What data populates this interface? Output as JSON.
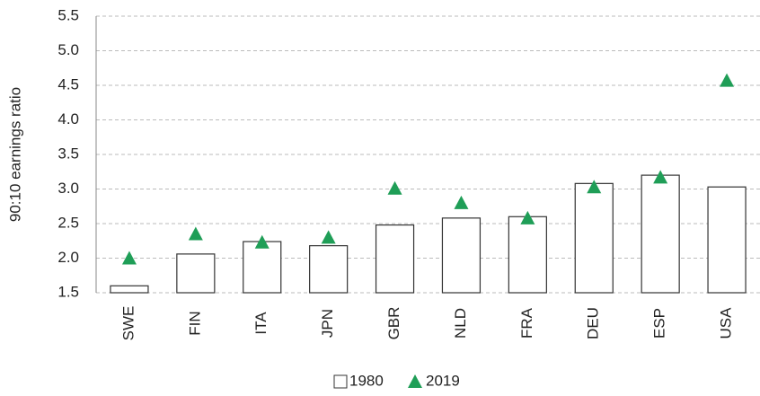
{
  "chart_data": {
    "type": "bar_marker",
    "y_label": "90:10 earnings ratio",
    "categories": [
      "SWE",
      "FIN",
      "ITA",
      "JPN",
      "GBR",
      "NLD",
      "FRA",
      "DEU",
      "ESP",
      "USA"
    ],
    "series": [
      {
        "name": "1980",
        "color": "#ffffff",
        "values": [
          1.6,
          2.06,
          2.24,
          2.18,
          2.48,
          2.58,
          2.6,
          3.08,
          3.2,
          3.03
        ]
      },
      {
        "name": "2019",
        "color": "#1f9e57",
        "values": [
          2.0,
          2.35,
          2.23,
          2.3,
          3.01,
          2.8,
          2.58,
          3.03,
          3.17,
          4.57
        ]
      }
    ],
    "ylim": [
      1.5,
      5.5
    ],
    "yticks": [
      1.5,
      {
        "value": 2,
        "label": "2.0"
      },
      2.5,
      {
        "value": 3,
        "label": "3.0"
      },
      3.5,
      {
        "value": 4,
        "label": "4.0"
      },
      4.5,
      {
        "value": 5,
        "label": "5.0"
      },
      5.5
    ],
    "grid": true
  }
}
